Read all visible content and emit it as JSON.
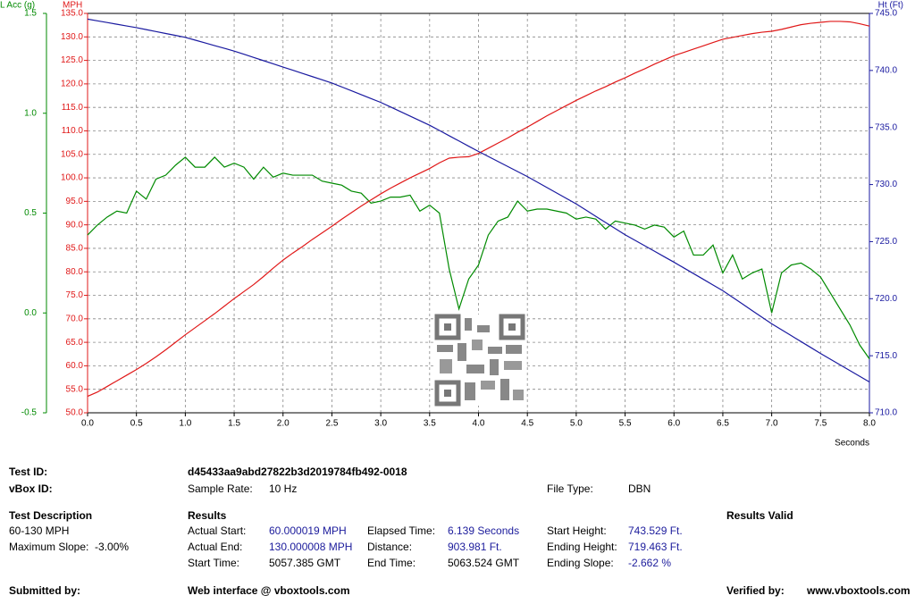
{
  "chart_data": {
    "type": "line",
    "xlabel": "Seconds",
    "ylabel": "MPH",
    "y2label": "Ht (Ft)",
    "y3label": "L Acc (g)",
    "grid": true,
    "x": [
      0,
      0.1,
      0.2,
      0.3,
      0.4,
      0.5,
      0.6,
      0.7,
      0.8,
      0.9,
      1,
      1.1,
      1.2,
      1.3,
      1.4,
      1.5,
      1.6,
      1.7,
      1.8,
      1.9,
      2,
      2.1,
      2.2,
      2.3,
      2.4,
      2.5,
      2.6,
      2.7,
      2.8,
      2.9,
      3,
      3.1,
      3.2,
      3.3,
      3.4,
      3.5,
      3.6,
      3.7,
      3.8,
      3.9,
      4,
      4.1,
      4.2,
      4.3,
      4.4,
      4.5,
      4.6,
      4.7,
      4.8,
      4.9,
      5,
      5.1,
      5.2,
      5.3,
      5.4,
      5.5,
      5.6,
      5.7,
      5.8,
      5.9,
      6,
      6.1,
      6.2,
      6.3,
      6.4,
      6.5,
      6.6,
      6.7,
      6.8,
      6.9,
      7,
      7.1,
      7.2,
      7.3,
      7.4,
      7.5,
      7.6,
      7.7,
      7.8,
      7.9,
      8
    ],
    "xlim": [
      0,
      8
    ],
    "xticks": [
      {
        "value": 0,
        "label": "0.0"
      },
      0.5,
      {
        "value": 1,
        "label": "1.0"
      },
      1.5,
      {
        "value": 2,
        "label": "2.0"
      },
      2.5,
      {
        "value": 3,
        "label": "3.0"
      },
      3.5,
      {
        "value": 4,
        "label": "4.0"
      },
      4.5,
      {
        "value": 5,
        "label": "5.0"
      },
      5.5,
      {
        "value": 6,
        "label": "6.0"
      },
      6.5,
      {
        "value": 7,
        "label": "7.0"
      },
      7.5,
      {
        "value": 8,
        "label": "8.0"
      }
    ],
    "ylim": [
      50,
      135
    ],
    "yticks": [
      {
        "value": 50,
        "label": "50.0"
      },
      {
        "value": 55,
        "label": "55.0"
      },
      {
        "value": 60,
        "label": "60.0"
      },
      {
        "value": 65,
        "label": "65.0"
      },
      {
        "value": 70,
        "label": "70.0"
      },
      {
        "value": 75,
        "label": "75.0"
      },
      {
        "value": 80,
        "label": "80.0"
      },
      {
        "value": 85,
        "label": "85.0"
      },
      {
        "value": 90,
        "label": "90.0"
      },
      {
        "value": 95,
        "label": "95.0"
      },
      {
        "value": 100,
        "label": "100.0"
      },
      {
        "value": 105,
        "label": "105.0"
      },
      {
        "value": 110,
        "label": "110.0"
      },
      {
        "value": 115,
        "label": "115.0"
      },
      {
        "value": 120,
        "label": "120.0"
      },
      {
        "value": 125,
        "label": "125.0"
      },
      {
        "value": 130,
        "label": "130.0"
      },
      {
        "value": 135,
        "label": "135.0"
      }
    ],
    "y2lim": [
      710,
      745
    ],
    "y2ticks": [
      {
        "value": 710,
        "label": "710.0"
      },
      {
        "value": 715,
        "label": "715.0"
      },
      {
        "value": 720,
        "label": "720.0"
      },
      {
        "value": 725,
        "label": "725.0"
      },
      {
        "value": 730,
        "label": "730.0"
      },
      {
        "value": 735,
        "label": "735.0"
      },
      {
        "value": 740,
        "label": "740.0"
      },
      {
        "value": 745,
        "label": "745.0"
      }
    ],
    "y3lim": [
      -0.5,
      1.5
    ],
    "y3ticks": [
      -0.5,
      {
        "value": 0,
        "label": "0.0"
      },
      0.5,
      {
        "value": 1,
        "label": "1.0"
      },
      1.5
    ],
    "series": [
      {
        "axis": "y3",
        "color": "#008a00",
        "values": [
          0.39,
          0.44,
          0.48,
          0.51,
          0.5,
          0.61,
          0.57,
          0.67,
          0.69,
          0.74,
          0.78,
          0.73,
          0.73,
          0.78,
          0.73,
          0.75,
          0.73,
          0.67,
          0.73,
          0.68,
          0.7,
          0.69,
          0.69,
          0.69,
          0.66,
          0.65,
          0.64,
          0.61,
          0.6,
          0.55,
          0.56,
          0.58,
          0.58,
          0.59,
          0.51,
          0.54,
          0.5,
          0.22,
          0.02,
          0.17,
          0.24,
          0.39,
          0.46,
          0.48,
          0.56,
          0.51,
          0.52,
          0.52,
          0.51,
          0.5,
          0.47,
          0.48,
          0.47,
          0.42,
          0.46,
          0.45,
          0.44,
          0.42,
          0.44,
          0.43,
          0.38,
          0.41,
          0.29,
          0.29,
          0.34,
          0.2,
          0.29,
          0.17,
          0.2,
          0.22,
          0,
          0.2,
          0.24,
          0.25,
          0.22,
          0.18,
          0.1,
          0.02,
          -0.06,
          -0.16,
          -0.23
        ]
      },
      {
        "axis": "y",
        "color": "#e01818",
        "values": [
          53.5,
          54.4,
          55.6,
          56.8,
          58,
          59.2,
          60.5,
          61.9,
          63.4,
          65,
          66.6,
          68.1,
          69.6,
          71.1,
          72.7,
          74.3,
          75.8,
          77.3,
          79,
          80.8,
          82.5,
          84,
          85.4,
          86.9,
          88.3,
          89.7,
          91.2,
          92.6,
          94,
          95.3,
          96.6,
          97.8,
          98.9,
          100,
          101,
          102,
          103.2,
          104.2,
          104.4,
          104.5,
          105.2,
          106.3,
          107.4,
          108.5,
          109.7,
          110.8,
          112,
          113.2,
          114.3,
          115.4,
          116.5,
          117.5,
          118.5,
          119.4,
          120.4,
          121.3,
          122.3,
          123.2,
          124.2,
          125.1,
          126,
          126.7,
          127.4,
          128.1,
          128.8,
          129.5,
          129.9,
          130.3,
          130.7,
          131,
          131.2,
          131.6,
          132.1,
          132.6,
          132.9,
          133.1,
          133.3,
          133.3,
          133.2,
          132.8,
          132.3
        ]
      },
      {
        "axis": "y2",
        "color": "#1a1aa0",
        "values": [
          744.5,
          744.35,
          744.2,
          744.05,
          743.9,
          743.75,
          743.58,
          743.41,
          743.24,
          743.07,
          742.9,
          742.66,
          742.42,
          742.18,
          741.94,
          741.7,
          741.42,
          741.14,
          740.86,
          740.58,
          740.3,
          740.02,
          739.74,
          739.46,
          739.18,
          738.9,
          738.56,
          738.22,
          737.88,
          737.54,
          737.2,
          736.8,
          736.4,
          736,
          735.6,
          735.2,
          734.74,
          734.28,
          733.82,
          733.36,
          732.9,
          732.46,
          732.02,
          731.58,
          731.14,
          730.7,
          730.22,
          729.74,
          729.26,
          728.78,
          728.3,
          727.76,
          727.22,
          726.68,
          726.14,
          725.6,
          725.12,
          724.64,
          724.16,
          723.68,
          723.2,
          722.7,
          722.2,
          721.7,
          721.2,
          720.7,
          720.12,
          719.54,
          718.96,
          718.38,
          717.8,
          717.28,
          716.76,
          716.24,
          715.72,
          715.2,
          714.7,
          714.2,
          713.7,
          713.2,
          712.7
        ]
      }
    ]
  },
  "report": {
    "test_id_label": "Test ID:",
    "test_id": "d45433aa9abd27822b3d2019784fb492-0018",
    "vbox_id_label": "vBox ID:",
    "sample_rate_label": "Sample Rate:",
    "sample_rate": "10 Hz",
    "file_type_label": "File Type:",
    "file_type": "DBN",
    "test_description_heading": "Test Description",
    "description": [
      "60-130 MPH",
      "Maximum Slope:  -3.00%"
    ],
    "results_heading": "Results",
    "results_valid": "Results Valid",
    "results": [
      [
        {
          "label": "Actual Start:",
          "value": "60.000019 MPH"
        },
        {
          "label": "Actual End:",
          "value": "130.000008 MPH"
        },
        {
          "label": "Start Time:",
          "value": "5057.385 GMT"
        }
      ],
      [
        {
          "label": "Elapsed Time:",
          "value": "6.139 Seconds"
        },
        {
          "label": "Distance:",
          "value": "903.981 Ft."
        },
        {
          "label": "End Time:",
          "value": "5063.524 GMT"
        }
      ],
      [
        {
          "label": "Start Height:",
          "value": "743.529 Ft."
        },
        {
          "label": "Ending Height:",
          "value": "719.463 Ft."
        },
        {
          "label": "Ending Slope:",
          "value": "-2.662 %"
        }
      ]
    ],
    "submitted_label": "Submitted by:",
    "web_interface": "Web interface @ vboxtools.com",
    "verified_label": "Verified by:",
    "website": "www.vboxtools.com"
  }
}
